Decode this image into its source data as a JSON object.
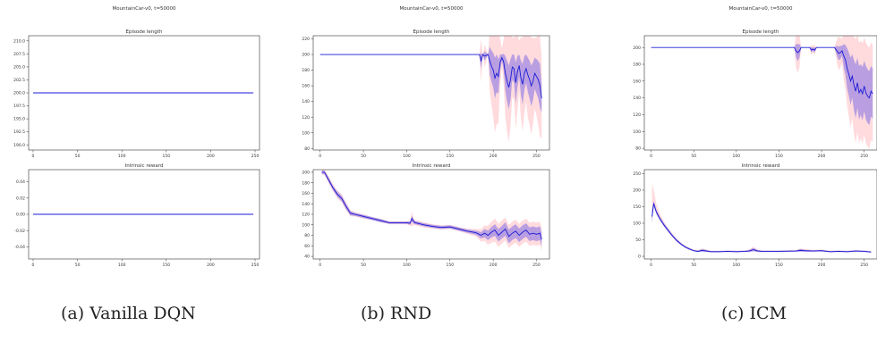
{
  "captions": [
    "(a) Vanilla DQN",
    "(b) RND",
    "(c) ICM"
  ],
  "chart_data": [
    {
      "type": "line",
      "figure_title": "MountainCar-v0, t=50000",
      "title": "Episode length",
      "xlim": [
        -5,
        255
      ],
      "ylim": [
        189,
        211
      ],
      "xticks": [
        0,
        50,
        100,
        150,
        200,
        250
      ],
      "yticks": [
        190.0,
        192.5,
        195.0,
        197.5,
        200.0,
        202.5,
        205.0,
        207.5,
        210.0
      ],
      "ytick_labels": [
        "190.0",
        "192.5",
        "195.0",
        "197.5",
        "200.0",
        "202.5",
        "205.0",
        "207.5",
        "210.0"
      ],
      "series": [
        {
          "x": [
            0,
            248
          ],
          "y": [
            200,
            200
          ],
          "band_inner": 0,
          "band_outer": 0
        }
      ],
      "grid": false
    },
    {
      "type": "line",
      "figure_title": "MountainCar-v0, t=50000",
      "title": "Intrinsic reward",
      "xlim": [
        -5,
        255
      ],
      "ylim": [
        -0.055,
        0.055
      ],
      "xticks": [
        0,
        50,
        100,
        150,
        200,
        250
      ],
      "yticks": [
        -0.04,
        -0.02,
        0.0,
        0.02,
        0.04
      ],
      "ytick_labels": [
        "-0.04",
        "-0.02",
        "0.00",
        "0.02",
        "0.04"
      ],
      "series": [
        {
          "x": [
            0,
            248
          ],
          "y": [
            0,
            0
          ],
          "band_inner": 0,
          "band_outer": 0
        }
      ],
      "grid": false
    },
    {
      "type": "line",
      "figure_title": "MountainCar-v0, t=50000",
      "title": "Episode length",
      "xlim": [
        -8,
        265
      ],
      "ylim": [
        78,
        224
      ],
      "xticks": [
        0,
        50,
        100,
        150,
        200,
        250
      ],
      "yticks": [
        80,
        100,
        120,
        140,
        160,
        180,
        200,
        220
      ],
      "ytick_labels": [
        "80",
        "100",
        "120",
        "140",
        "160",
        "180",
        "200",
        "220"
      ],
      "series": [
        {
          "x": [
            0,
            150,
            184,
            186,
            188,
            190,
            192,
            194,
            196,
            198,
            200,
            202,
            204,
            206,
            208,
            210,
            212,
            214,
            216,
            218,
            220,
            222,
            224,
            226,
            228,
            230,
            232,
            234,
            236,
            238,
            240,
            242,
            244,
            246,
            248,
            250,
            252,
            254,
            256
          ],
          "y": [
            200,
            200,
            200,
            192,
            200,
            198,
            199,
            200,
            192,
            185,
            180,
            170,
            176,
            172,
            190,
            196,
            191,
            176,
            166,
            158,
            168,
            184,
            182,
            164,
            178,
            186,
            170,
            162,
            176,
            182,
            174,
            168,
            160,
            166,
            176,
            172,
            168,
            160,
            144
          ],
          "band_inner": [
            0,
            0,
            0,
            10,
            0,
            6,
            3,
            0,
            18,
            20,
            22,
            26,
            24,
            22,
            10,
            4,
            10,
            22,
            26,
            28,
            26,
            16,
            18,
            26,
            20,
            14,
            22,
            26,
            22,
            18,
            22,
            24,
            26,
            24,
            20,
            22,
            24,
            28,
            18
          ],
          "band_outer": [
            0,
            0,
            0,
            28,
            0,
            14,
            8,
            0,
            40,
            50,
            60,
            70,
            65,
            60,
            30,
            12,
            28,
            55,
            65,
            70,
            60,
            38,
            40,
            60,
            50,
            32,
            52,
            60,
            52,
            42,
            55,
            58,
            62,
            55,
            45,
            50,
            58,
            65,
            52
          ]
        }
      ],
      "grid": false
    },
    {
      "type": "line",
      "figure_title": "MountainCar-v0, t=50000",
      "title": "Intrinsic reward",
      "xlim": [
        -8,
        265
      ],
      "ylim": [
        35,
        205
      ],
      "xticks": [
        0,
        50,
        100,
        150,
        200,
        250
      ],
      "yticks": [
        40,
        60,
        80,
        100,
        120,
        140,
        160,
        180,
        200
      ],
      "ytick_labels": [
        "40",
        "60",
        "80",
        "100",
        "120",
        "140",
        "160",
        "180",
        "200"
      ],
      "series": [
        {
          "x": [
            2,
            5,
            10,
            15,
            20,
            25,
            30,
            35,
            40,
            50,
            60,
            70,
            80,
            90,
            100,
            104,
            106,
            108,
            110,
            120,
            130,
            140,
            150,
            160,
            170,
            180,
            186,
            190,
            194,
            198,
            202,
            206,
            210,
            214,
            218,
            222,
            226,
            230,
            234,
            238,
            242,
            246,
            250,
            254,
            256
          ],
          "y": [
            200,
            200,
            185,
            170,
            158,
            150,
            135,
            122,
            120,
            116,
            112,
            108,
            104,
            104,
            104,
            103,
            112,
            106,
            104,
            100,
            97,
            95,
            96,
            92,
            88,
            85,
            80,
            84,
            80,
            86,
            90,
            80,
            86,
            92,
            78,
            84,
            88,
            80,
            86,
            90,
            82,
            84,
            82,
            84,
            72
          ],
          "band_inner": [
            3,
            3,
            4,
            4,
            5,
            5,
            5,
            4,
            3,
            3,
            3,
            3,
            2,
            2,
            2,
            3,
            5,
            4,
            3,
            3,
            3,
            3,
            3,
            3,
            3,
            4,
            6,
            8,
            9,
            10,
            11,
            12,
            12,
            13,
            13,
            13,
            13,
            13,
            13,
            13,
            13,
            13,
            13,
            13,
            13
          ],
          "band_outer": [
            5,
            6,
            7,
            7,
            8,
            8,
            8,
            6,
            4,
            4,
            3,
            3,
            3,
            3,
            3,
            5,
            14,
            7,
            5,
            5,
            4,
            4,
            4,
            4,
            5,
            7,
            12,
            15,
            18,
            20,
            22,
            22,
            22,
            22,
            22,
            22,
            22,
            22,
            22,
            22,
            22,
            22,
            22,
            22,
            22
          ]
        }
      ],
      "grid": false
    },
    {
      "type": "line",
      "figure_title": "MountainCar-v0, t=50000",
      "title": "Episode length",
      "xlim": [
        -8,
        265
      ],
      "ylim": [
        78,
        214
      ],
      "xticks": [
        0,
        50,
        100,
        150,
        200,
        250
      ],
      "yticks": [
        80,
        100,
        120,
        140,
        160,
        180,
        200
      ],
      "ytick_labels": [
        "80",
        "100",
        "120",
        "140",
        "160",
        "180",
        "200"
      ],
      "series": [
        {
          "x": [
            0,
            168,
            170,
            172,
            174,
            176,
            186,
            188,
            190,
            192,
            194,
            215,
            218,
            220,
            222,
            224,
            226,
            228,
            230,
            232,
            234,
            236,
            238,
            240,
            242,
            244,
            246,
            248,
            250,
            252,
            254,
            256,
            258,
            260
          ],
          "y": [
            200,
            200,
            196,
            194,
            196,
            200,
            200,
            197,
            198,
            197,
            200,
            200,
            196,
            193,
            194,
            196,
            190,
            185,
            175,
            168,
            160,
            166,
            155,
            148,
            158,
            146,
            150,
            145,
            154,
            146,
            142,
            140,
            148,
            145
          ],
          "band_inner": [
            0,
            0,
            8,
            10,
            8,
            0,
            0,
            3,
            2,
            3,
            0,
            0,
            6,
            8,
            8,
            6,
            14,
            18,
            24,
            26,
            28,
            26,
            30,
            32,
            30,
            32,
            30,
            32,
            30,
            32,
            32,
            32,
            30,
            30
          ],
          "band_outer": [
            0,
            0,
            20,
            24,
            20,
            0,
            0,
            6,
            4,
            6,
            0,
            0,
            14,
            20,
            18,
            14,
            28,
            36,
            45,
            50,
            55,
            50,
            58,
            62,
            58,
            60,
            58,
            60,
            58,
            60,
            60,
            60,
            58,
            58
          ]
        }
      ],
      "grid": false
    },
    {
      "type": "line",
      "figure_title": "MountainCar-v0, t=50000",
      "title": "Intrinsic reward",
      "xlim": [
        -8,
        265
      ],
      "ylim": [
        -8,
        262
      ],
      "xticks": [
        0,
        50,
        100,
        150,
        200,
        250
      ],
      "yticks": [
        0,
        50,
        100,
        150,
        200,
        250
      ],
      "ytick_labels": [
        "0",
        "50",
        "100",
        "150",
        "200",
        "250"
      ],
      "series": [
        {
          "x": [
            1,
            3,
            6,
            10,
            15,
            20,
            25,
            30,
            35,
            40,
            45,
            50,
            55,
            60,
            70,
            80,
            90,
            100,
            110,
            115,
            120,
            125,
            130,
            150,
            170,
            175,
            180,
            190,
            200,
            210,
            220,
            230,
            240,
            250,
            258
          ],
          "y": [
            120,
            160,
            135,
            115,
            95,
            78,
            62,
            48,
            37,
            28,
            22,
            17,
            15,
            18,
            14,
            14,
            15,
            14,
            15,
            16,
            20,
            16,
            15,
            15,
            16,
            18,
            17,
            16,
            17,
            14,
            15,
            14,
            16,
            15,
            13
          ],
          "band_inner": [
            20,
            8,
            7,
            6,
            5,
            5,
            4,
            4,
            3,
            3,
            3,
            2,
            2,
            4,
            2,
            2,
            2,
            2,
            2,
            3,
            5,
            3,
            2,
            2,
            2,
            4,
            3,
            2,
            2,
            2,
            2,
            2,
            2,
            2,
            2
          ],
          "band_outer": [
            100,
            40,
            25,
            15,
            10,
            8,
            7,
            6,
            5,
            5,
            4,
            4,
            4,
            6,
            3,
            3,
            3,
            3,
            3,
            5,
            9,
            5,
            3,
            3,
            3,
            6,
            5,
            4,
            4,
            3,
            3,
            3,
            3,
            3,
            3
          ],
          "outer_scale": {
            "below": 0.2
          }
        }
      ],
      "grid": false
    }
  ]
}
